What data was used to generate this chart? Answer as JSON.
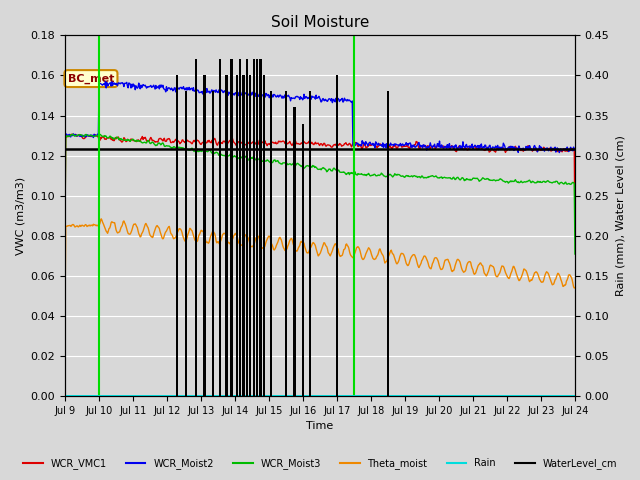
{
  "title": "Soil Moisture",
  "ylabel_left": "VWC (m3/m3)",
  "ylabel_right": "Rain (mm), Water Level (cm)",
  "xlabel": "Time",
  "background_color": "#d8d8d8",
  "plot_bg_color": "#d8d8d8",
  "ylim_left": [
    0.0,
    0.18
  ],
  "ylim_right": [
    0.0,
    0.45
  ],
  "x_tick_labels": [
    "Jul 9",
    "Jul 10",
    "Jul 11",
    "Jul 12",
    "Jul 13",
    "Jul 14",
    "Jul 15",
    "Jul 16",
    "Jul 17",
    "Jul 18",
    "Jul 19",
    "Jul 20",
    "Jul 21",
    "Jul 22",
    "Jul 23",
    "Jul 24"
  ],
  "annotation_text": "BC_met",
  "green_vlines": [
    1.0,
    8.5
  ],
  "colors": {
    "WCR_VMC1": "#dd0000",
    "WCR_Moist2": "#0000ee",
    "WCR_Moist3": "#00bb00",
    "Theta_moist": "#ee8800",
    "Rain": "#00dddd",
    "WaterLevel_cm": "#000000"
  },
  "rain_spikes_x": [
    3.3,
    3.55,
    3.85,
    4.1,
    4.35,
    4.55,
    4.75,
    4.9,
    5.05,
    5.15,
    5.25,
    5.35,
    5.45,
    5.55,
    5.65,
    5.75,
    5.85,
    6.05,
    6.5,
    6.75,
    7.0,
    7.2,
    8.0,
    9.5
  ],
  "rain_spikes_h": [
    0.4,
    0.38,
    0.42,
    0.4,
    0.38,
    0.42,
    0.4,
    0.42,
    0.4,
    0.42,
    0.4,
    0.42,
    0.4,
    0.42,
    0.42,
    0.42,
    0.4,
    0.38,
    0.38,
    0.36,
    0.34,
    0.38,
    0.4,
    0.38
  ]
}
